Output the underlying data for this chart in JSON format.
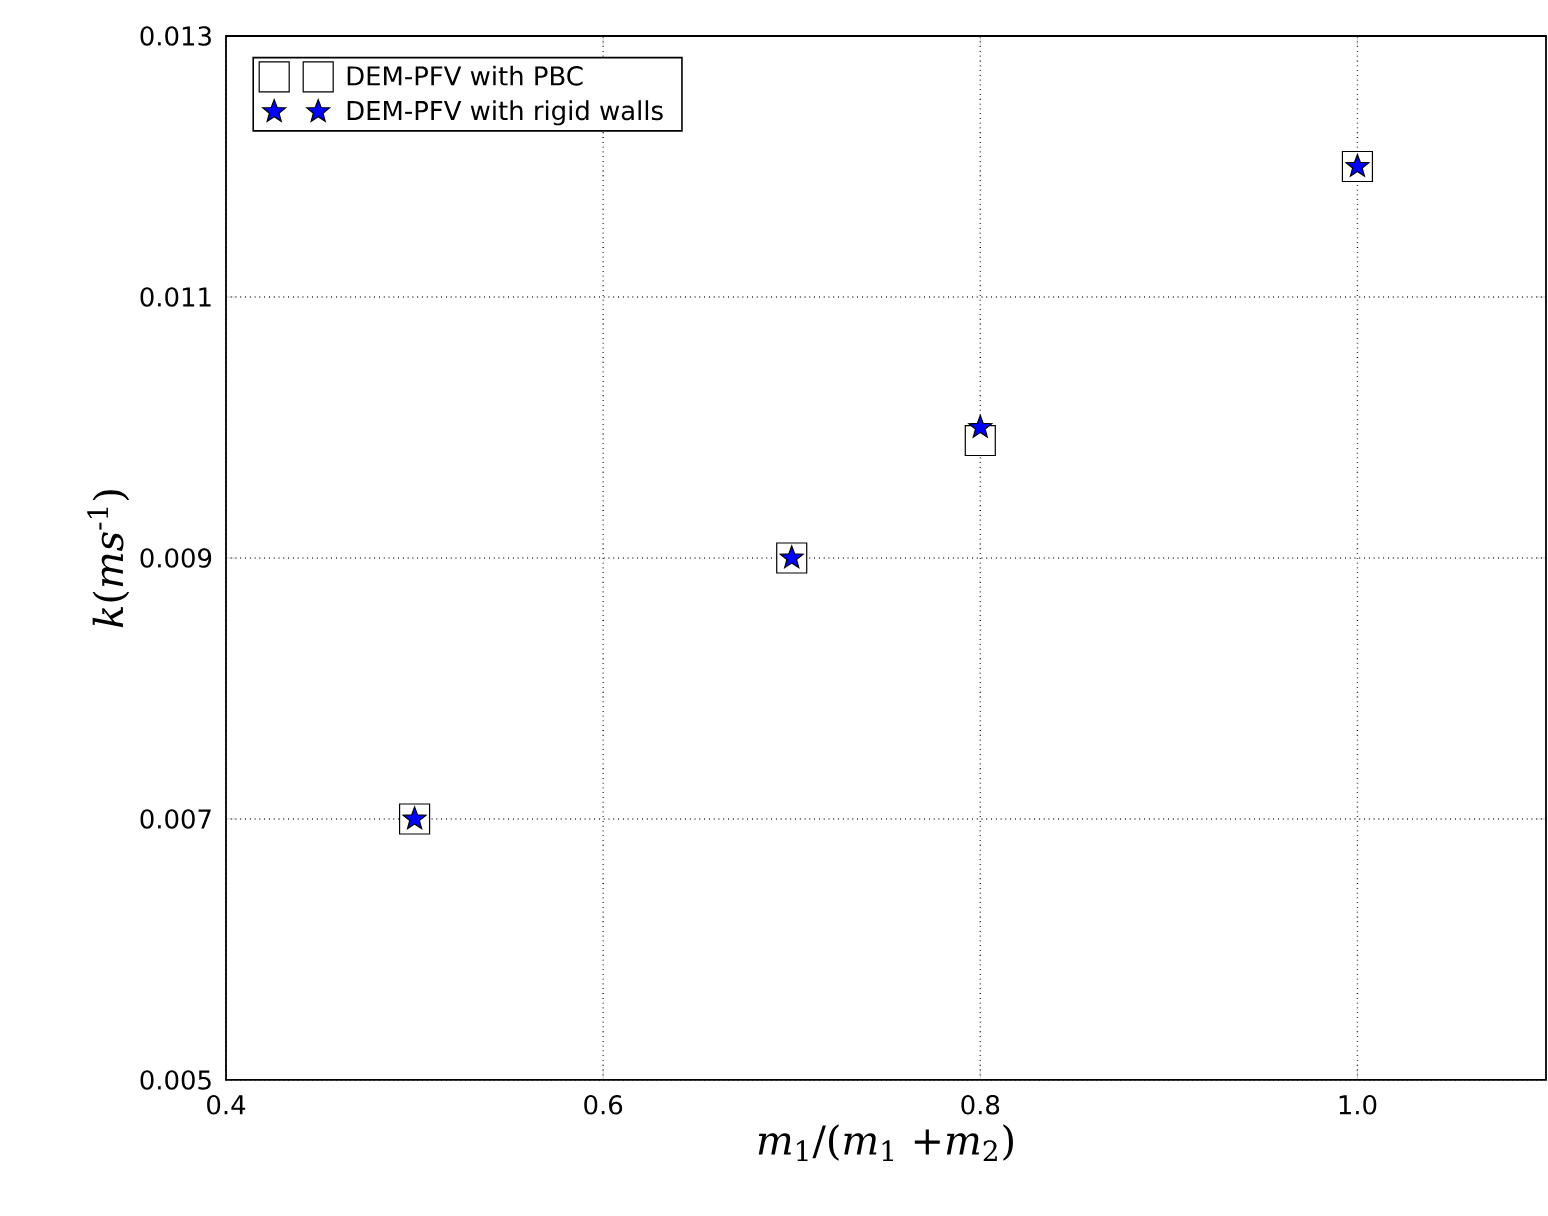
{
  "chart_data": {
    "type": "scatter",
    "xlabel": "*m*$_{1}$/(*m*$_{1}$ +*m*$_{2}$)",
    "ylabel": "*k*(*ms*$^{-1}$)",
    "x": [
      0.5,
      0.7,
      0.8,
      1.0
    ],
    "series": [
      {
        "name": "DEM-PFV with PBC",
        "color": "#ffffff",
        "marker": "square",
        "values": [
          0.007,
          0.009,
          0.0099,
          0.012
        ]
      },
      {
        "name": "DEM-PFV with rigid walls",
        "color": "#0000ff",
        "marker": "star",
        "values": [
          0.007,
          0.009,
          0.01,
          0.012
        ]
      }
    ],
    "xlim": [
      0.4,
      1.1
    ],
    "ylim": [
      0.005,
      0.013
    ],
    "xticks": [
      0.4,
      0.6,
      0.8,
      {
        "value": 1.0,
        "label": "1.0"
      }
    ],
    "yticks": [
      0.005,
      0.007,
      0.009,
      0.011,
      0.013
    ],
    "grid": true,
    "legend": "top left"
  }
}
